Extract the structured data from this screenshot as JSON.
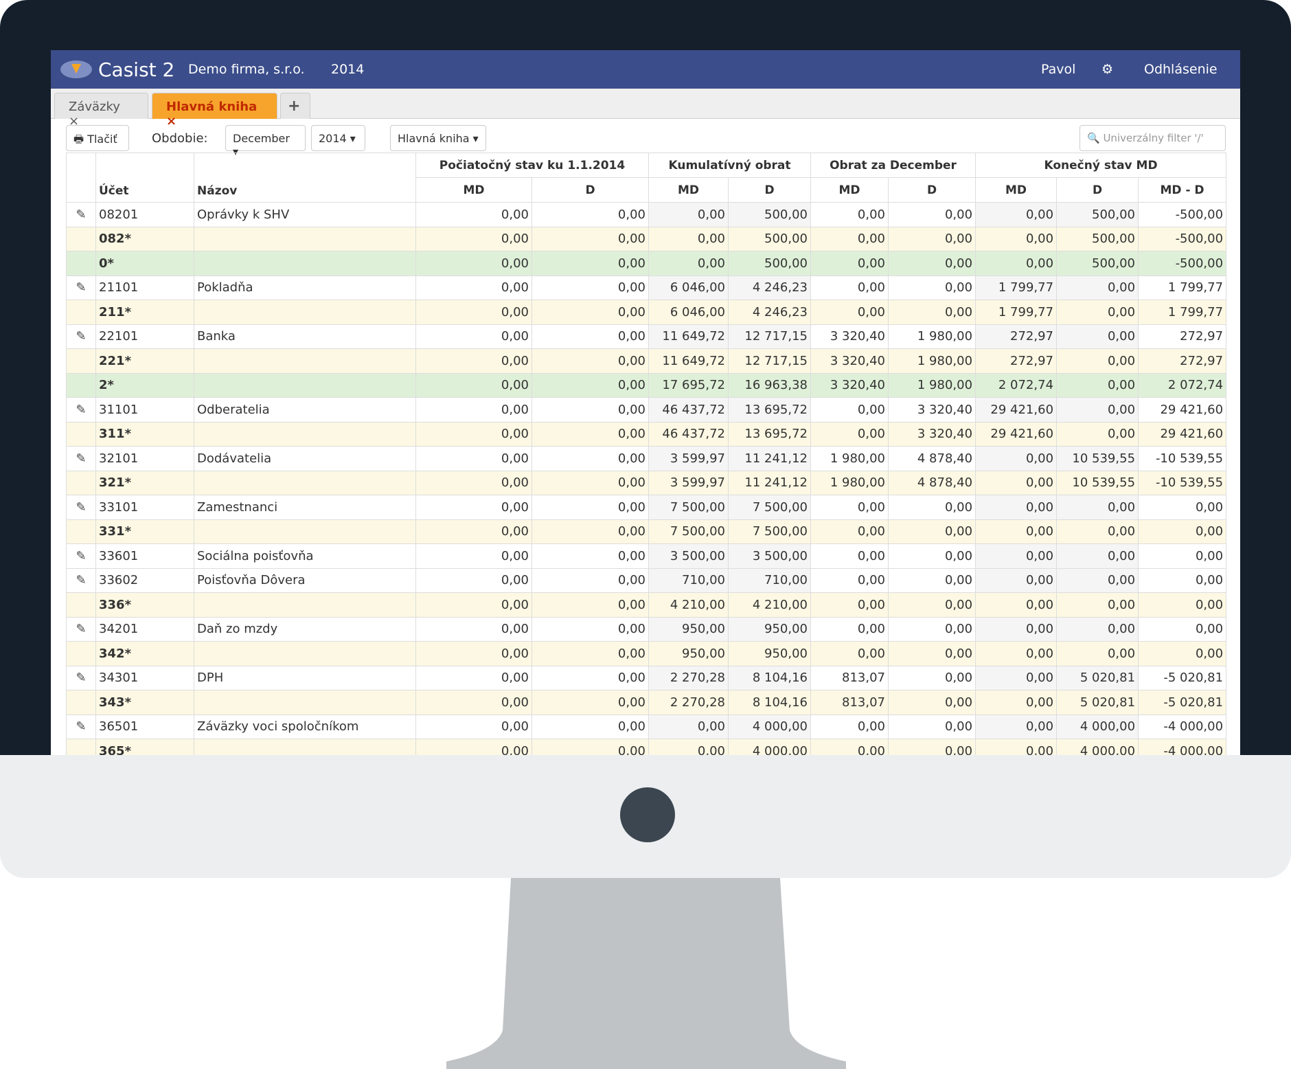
{
  "header": {
    "logo": "Casist 2",
    "company": "Demo firma, s.r.o.",
    "year": "2014",
    "user": "Pavol",
    "logout": "Odhlásenie"
  },
  "tabs": [
    "Záväzky",
    "Hlavná kniha"
  ],
  "toolbar": {
    "print": "Tlačiť",
    "period_label": "Obdobie:",
    "month": "December",
    "year": "2014",
    "view": "Hlavná kniha",
    "filter_placeholder": "Univerzálny filter '/'"
  },
  "table": {
    "group_headers": [
      "Počiatočný stav ku 1.1.2014",
      "Kumulatívný obrat",
      "Obrat za December",
      "Konečný stav MD"
    ],
    "columns": [
      "Účet",
      "Názov",
      "MD",
      "D",
      "MD",
      "D",
      "MD",
      "D",
      "MD",
      "D",
      "MD - D"
    ],
    "rows": [
      {
        "account": "08201",
        "name": "Oprávky k SHV",
        "values": [
          "0,00",
          "0,00",
          "0,00",
          "500,00",
          "0,00",
          "0,00",
          "0,00",
          "500,00",
          "-500,00"
        ]
      },
      {
        "account": "082*",
        "name": "",
        "values": [
          "0,00",
          "0,00",
          "0,00",
          "500,00",
          "0,00",
          "0,00",
          "0,00",
          "500,00",
          "-500,00"
        ]
      },
      {
        "account": "0*",
        "name": "",
        "values": [
          "0,00",
          "0,00",
          "0,00",
          "500,00",
          "0,00",
          "0,00",
          "0,00",
          "500,00",
          "-500,00"
        ]
      },
      {
        "account": "21101",
        "name": "Pokladňa",
        "values": [
          "0,00",
          "0,00",
          "6 046,00",
          "4 246,23",
          "0,00",
          "0,00",
          "1 799,77",
          "0,00",
          "1 799,77"
        ]
      },
      {
        "account": "211*",
        "name": "",
        "values": [
          "0,00",
          "0,00",
          "6 046,00",
          "4 246,23",
          "0,00",
          "0,00",
          "1 799,77",
          "0,00",
          "1 799,77"
        ]
      },
      {
        "account": "22101",
        "name": "Banka",
        "values": [
          "0,00",
          "0,00",
          "11 649,72",
          "12 717,15",
          "3 320,40",
          "1 980,00",
          "272,97",
          "0,00",
          "272,97"
        ]
      },
      {
        "account": "221*",
        "name": "",
        "values": [
          "0,00",
          "0,00",
          "11 649,72",
          "12 717,15",
          "3 320,40",
          "1 980,00",
          "272,97",
          "0,00",
          "272,97"
        ]
      },
      {
        "account": "2*",
        "name": "",
        "values": [
          "0,00",
          "0,00",
          "17 695,72",
          "16 963,38",
          "3 320,40",
          "1 980,00",
          "2 072,74",
          "0,00",
          "2 072,74"
        ]
      },
      {
        "account": "31101",
        "name": "Odberatelia",
        "values": [
          "0,00",
          "0,00",
          "46 437,72",
          "13 695,72",
          "0,00",
          "3 320,40",
          "29 421,60",
          "0,00",
          "29 421,60"
        ]
      },
      {
        "account": "311*",
        "name": "",
        "values": [
          "0,00",
          "0,00",
          "46 437,72",
          "13 695,72",
          "0,00",
          "3 320,40",
          "29 421,60",
          "0,00",
          "29 421,60"
        ]
      },
      {
        "account": "32101",
        "name": "Dodávatelia",
        "values": [
          "0,00",
          "0,00",
          "3 599,97",
          "11 241,12",
          "1 980,00",
          "4 878,40",
          "0,00",
          "10 539,55",
          "-10 539,55"
        ]
      },
      {
        "account": "321*",
        "name": "",
        "values": [
          "0,00",
          "0,00",
          "3 599,97",
          "11 241,12",
          "1 980,00",
          "4 878,40",
          "0,00",
          "10 539,55",
          "-10 539,55"
        ]
      },
      {
        "account": "33101",
        "name": "Zamestnanci",
        "values": [
          "0,00",
          "0,00",
          "7 500,00",
          "7 500,00",
          "0,00",
          "0,00",
          "0,00",
          "0,00",
          "0,00"
        ]
      },
      {
        "account": "331*",
        "name": "",
        "values": [
          "0,00",
          "0,00",
          "7 500,00",
          "7 500,00",
          "0,00",
          "0,00",
          "0,00",
          "0,00",
          "0,00"
        ]
      },
      {
        "account": "33601",
        "name": "Sociálna poisťovňa",
        "values": [
          "0,00",
          "0,00",
          "3 500,00",
          "3 500,00",
          "0,00",
          "0,00",
          "0,00",
          "0,00",
          "0,00"
        ]
      },
      {
        "account": "33602",
        "name": "Poisťovňa Dôvera",
        "values": [
          "0,00",
          "0,00",
          "710,00",
          "710,00",
          "0,00",
          "0,00",
          "0,00",
          "0,00",
          "0,00"
        ]
      },
      {
        "account": "336*",
        "name": "",
        "values": [
          "0,00",
          "0,00",
          "4 210,00",
          "4 210,00",
          "0,00",
          "0,00",
          "0,00",
          "0,00",
          "0,00"
        ]
      },
      {
        "account": "34201",
        "name": "Daň zo mzdy",
        "values": [
          "0,00",
          "0,00",
          "950,00",
          "950,00",
          "0,00",
          "0,00",
          "0,00",
          "0,00",
          "0,00"
        ]
      },
      {
        "account": "342*",
        "name": "",
        "values": [
          "0,00",
          "0,00",
          "950,00",
          "950,00",
          "0,00",
          "0,00",
          "0,00",
          "0,00",
          "0,00"
        ]
      },
      {
        "account": "34301",
        "name": "DPH",
        "values": [
          "0,00",
          "0,00",
          "2 270,28",
          "8 104,16",
          "813,07",
          "0,00",
          "0,00",
          "5 020,81",
          "-5 020,81"
        ]
      },
      {
        "account": "343*",
        "name": "",
        "values": [
          "0,00",
          "0,00",
          "2 270,28",
          "8 104,16",
          "813,07",
          "0,00",
          "0,00",
          "5 020,81",
          "-5 020,81"
        ]
      },
      {
        "account": "36501",
        "name": "Záväzky voci spoločníkom",
        "values": [
          "0,00",
          "0,00",
          "0,00",
          "4 000,00",
          "0,00",
          "0,00",
          "0,00",
          "4 000,00",
          "-4 000,00"
        ]
      },
      {
        "account": "365*",
        "name": "",
        "values": [
          "0,00",
          "0,00",
          "0,00",
          "4 000,00",
          "0,00",
          "0,00",
          "0,00",
          "4 000,00",
          "-4 000,00"
        ]
      }
    ]
  }
}
